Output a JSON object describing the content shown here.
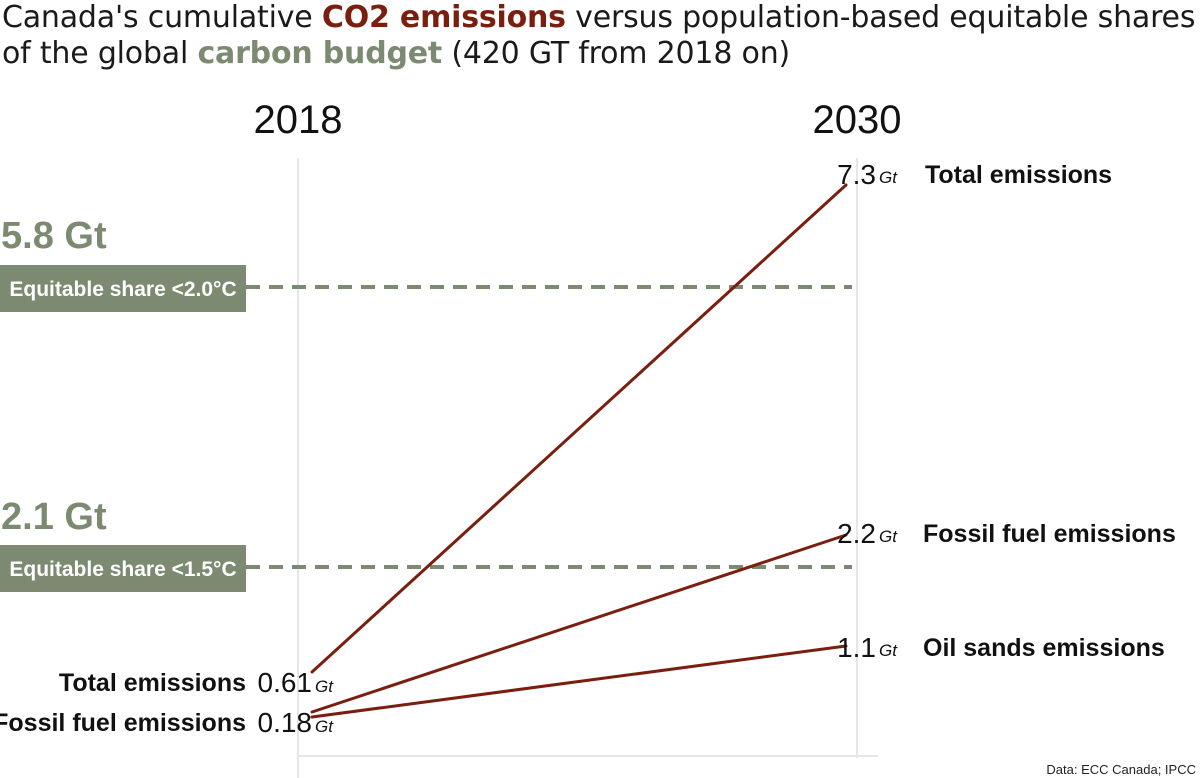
{
  "title": {
    "part1": "Canada's cumulative ",
    "highlight1": "CO2 emissions",
    "part2": " versus population-based equitable shares of the global ",
    "highlight2": "carbon budget",
    "part3": " (420 GT from 2018 on)"
  },
  "colors": {
    "emissions": "#7a1f0f",
    "budget": "#7b8a70",
    "axis": "#e6e6e6"
  },
  "chart_data": {
    "type": "line",
    "x": [
      "2018",
      "2030"
    ],
    "unit": "Gt",
    "series": [
      {
        "name": "Total emissions",
        "start_label": "Total emissions",
        "values": [
          0.61,
          7.3
        ],
        "start_text": "0.61",
        "end_text": "7.3"
      },
      {
        "name": "Fossil fuel emissions",
        "start_label": "Fossil fuel emissions",
        "values": [
          0.18,
          2.2
        ],
        "start_text": "0.18",
        "end_text": "2.2"
      },
      {
        "name": "Oil sands emissions",
        "start_label": "",
        "values": [
          0.18,
          1.1
        ],
        "start_text": "",
        "end_text": "1.1"
      }
    ],
    "thresholds": [
      {
        "value": 5.8,
        "value_text": "5.8 Gt",
        "label": "Equitable share <2.0°C"
      },
      {
        "value": 2.1,
        "value_text": "2.1 Gt",
        "label": "Equitable share <1.5°C"
      }
    ],
    "source": "Data: ECC Canada; IPCC"
  }
}
